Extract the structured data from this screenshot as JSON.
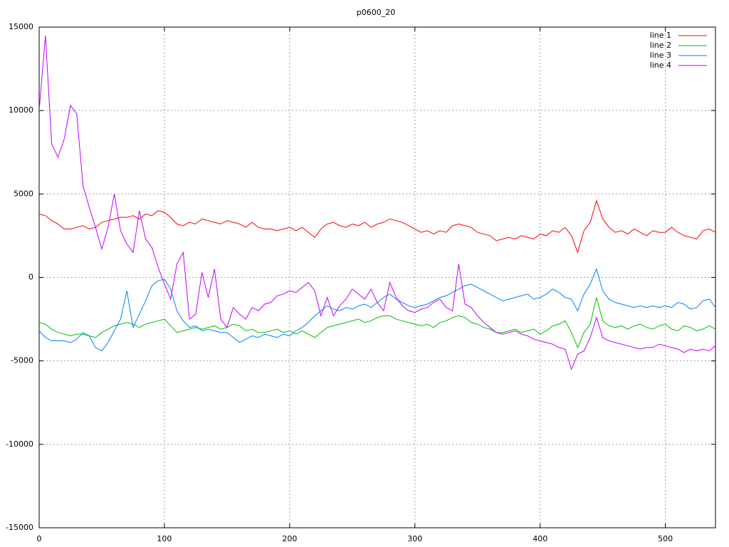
{
  "chart_data": {
    "type": "line",
    "title": "p0600_20",
    "x": [
      0,
      5,
      10,
      15,
      20,
      25,
      30,
      35,
      40,
      45,
      50,
      55,
      60,
      65,
      70,
      75,
      80,
      85,
      90,
      95,
      100,
      105,
      110,
      115,
      120,
      125,
      130,
      135,
      140,
      145,
      150,
      155,
      160,
      165,
      170,
      175,
      180,
      185,
      190,
      195,
      200,
      205,
      210,
      215,
      220,
      225,
      230,
      235,
      240,
      245,
      250,
      255,
      260,
      265,
      270,
      275,
      280,
      285,
      290,
      295,
      300,
      305,
      310,
      315,
      320,
      325,
      330,
      335,
      340,
      345,
      350,
      355,
      360,
      365,
      370,
      375,
      380,
      385,
      390,
      395,
      400,
      405,
      410,
      415,
      420,
      425,
      430,
      435,
      440,
      445,
      450,
      455,
      460,
      465,
      470,
      475,
      480,
      485,
      490,
      495,
      500,
      505,
      510,
      515,
      520,
      525,
      530,
      535,
      540
    ],
    "series": [
      {
        "name": "line 1",
        "color": "#ff0000",
        "values": [
          3800,
          3700,
          3400,
          3200,
          2900,
          2900,
          3000,
          3100,
          2900,
          3000,
          3300,
          3400,
          3500,
          3600,
          3600,
          3700,
          3500,
          3800,
          3700,
          4000,
          3900,
          3600,
          3200,
          3100,
          3300,
          3200,
          3500,
          3400,
          3300,
          3200,
          3400,
          3300,
          3200,
          3000,
          3300,
          3000,
          2900,
          2900,
          2800,
          2900,
          3000,
          2800,
          3000,
          2700,
          2400,
          2900,
          3200,
          3300,
          3100,
          3000,
          3200,
          3100,
          3300,
          3000,
          3200,
          3300,
          3500,
          3400,
          3300,
          3100,
          2900,
          2700,
          2800,
          2600,
          2800,
          2700,
          3100,
          3200,
          3100,
          3000,
          2700,
          2600,
          2500,
          2200,
          2300,
          2400,
          2300,
          2500,
          2400,
          2300,
          2600,
          2500,
          2800,
          2700,
          3000,
          2500,
          1500,
          2800,
          3300,
          4600,
          3500,
          3000,
          2700,
          2800,
          2600,
          2900,
          2700,
          2500,
          2800,
          2700,
          2700,
          3000,
          2700,
          2500,
          2400,
          2300,
          2800,
          2900,
          2700
        ]
      },
      {
        "name": "line 2",
        "color": "#00c000",
        "values": [
          -2700,
          -2800,
          -3100,
          -3300,
          -3400,
          -3500,
          -3400,
          -3400,
          -3500,
          -3600,
          -3300,
          -3100,
          -2900,
          -2800,
          -2700,
          -2800,
          -3000,
          -2800,
          -2700,
          -2600,
          -2500,
          -2900,
          -3300,
          -3200,
          -3100,
          -3000,
          -3100,
          -3000,
          -2900,
          -3100,
          -3000,
          -2800,
          -2900,
          -3200,
          -3100,
          -3300,
          -3300,
          -3200,
          -3100,
          -3300,
          -3200,
          -3400,
          -3200,
          -3400,
          -3600,
          -3300,
          -3000,
          -2900,
          -2800,
          -2700,
          -2600,
          -2500,
          -2700,
          -2600,
          -2400,
          -2300,
          -2300,
          -2500,
          -2600,
          -2700,
          -2800,
          -2900,
          -2800,
          -3000,
          -2700,
          -2600,
          -2400,
          -2300,
          -2400,
          -2700,
          -2800,
          -3000,
          -3100,
          -3300,
          -3300,
          -3200,
          -3100,
          -3300,
          -3200,
          -3100,
          -3400,
          -3200,
          -2900,
          -2800,
          -2600,
          -3300,
          -4200,
          -3300,
          -2800,
          -1200,
          -2600,
          -2900,
          -3000,
          -2900,
          -3100,
          -2900,
          -2800,
          -3000,
          -3100,
          -2900,
          -2800,
          -3100,
          -3200,
          -2900,
          -3000,
          -3200,
          -3100,
          -2900,
          -3100
        ]
      },
      {
        "name": "line 3",
        "color": "#0080ff",
        "values": [
          -3200,
          -3600,
          -3800,
          -3800,
          -3800,
          -3900,
          -3700,
          -3300,
          -3500,
          -4200,
          -4400,
          -3900,
          -3200,
          -2500,
          -800,
          -3000,
          -2200,
          -1400,
          -500,
          -200,
          -100,
          -700,
          -2000,
          -2600,
          -3000,
          -2900,
          -3200,
          -3100,
          -3200,
          -3300,
          -3300,
          -3600,
          -3900,
          -3700,
          -3500,
          -3600,
          -3400,
          -3500,
          -3600,
          -3400,
          -3500,
          -3200,
          -3000,
          -2700,
          -2300,
          -2000,
          -1700,
          -1900,
          -2000,
          -1800,
          -1900,
          -1700,
          -1600,
          -1800,
          -1500,
          -1200,
          -1000,
          -1300,
          -1500,
          -1700,
          -1800,
          -1700,
          -1600,
          -1400,
          -1200,
          -1100,
          -900,
          -700,
          -500,
          -400,
          -600,
          -800,
          -1000,
          -1200,
          -1400,
          -1300,
          -1200,
          -1100,
          -1000,
          -1300,
          -1200,
          -1000,
          -700,
          -900,
          -1200,
          -1300,
          -2000,
          -1000,
          -400,
          500,
          -800,
          -1300,
          -1500,
          -1600,
          -1700,
          -1800,
          -1700,
          -1800,
          -1700,
          -1800,
          -1700,
          -1800,
          -1500,
          -1600,
          -1900,
          -1800,
          -1400,
          -1300,
          -1800
        ]
      },
      {
        "name": "line 4",
        "color": "#c000ff",
        "values": [
          10000,
          14500,
          8000,
          7200,
          8300,
          10300,
          9800,
          5500,
          4200,
          3000,
          1700,
          3000,
          5000,
          2800,
          2000,
          1500,
          4000,
          2300,
          1800,
          600,
          -400,
          -1300,
          800,
          1500,
          -2500,
          -2200,
          300,
          -1200,
          500,
          -2500,
          -3000,
          -1800,
          -2200,
          -2500,
          -1800,
          -2000,
          -1600,
          -1500,
          -1100,
          -1000,
          -800,
          -900,
          -600,
          -300,
          -800,
          -2300,
          -1200,
          -2300,
          -1700,
          -1300,
          -700,
          -1000,
          -1300,
          -700,
          -1500,
          -2000,
          -300,
          -1200,
          -1700,
          -2000,
          -2100,
          -1900,
          -1800,
          -1500,
          -1300,
          -1800,
          -2000,
          800,
          -1600,
          -1800,
          -2300,
          -2700,
          -3000,
          -3300,
          -3400,
          -3300,
          -3200,
          -3400,
          -3500,
          -3700,
          -3800,
          -3900,
          -4000,
          -4200,
          -4300,
          -5500,
          -4600,
          -4400,
          -3600,
          -2400,
          -3600,
          -3800,
          -3900,
          -4000,
          -4100,
          -4200,
          -4300,
          -4200,
          -4200,
          -4000,
          -4100,
          -4200,
          -4300,
          -4500,
          -4300,
          -4400,
          -4300,
          -4400,
          -4100
        ]
      }
    ],
    "xlim": [
      0,
      540
    ],
    "xticks": [
      0,
      100,
      200,
      300,
      400,
      500
    ],
    "ylim": [
      -15000,
      15000
    ],
    "yticks": [
      -15000,
      -10000,
      -5000,
      0,
      5000,
      10000,
      15000
    ],
    "grid": true,
    "legend": "upper right"
  }
}
